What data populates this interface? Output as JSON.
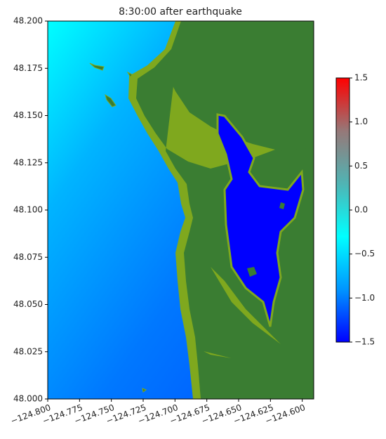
{
  "chart_data": {
    "type": "map",
    "title": "8:30:00 after earthquake",
    "xlim": [
      -124.8,
      -124.591
    ],
    "ylim": [
      48.0,
      48.2
    ],
    "xticks": [
      {
        "value": -124.8,
        "label": "−124.800"
      },
      {
        "value": -124.775,
        "label": "−124.775"
      },
      {
        "value": -124.75,
        "label": "−124.750"
      },
      {
        "value": -124.725,
        "label": "−124.725"
      },
      {
        "value": -124.7,
        "label": "−124.700"
      },
      {
        "value": -124.675,
        "label": "−124.675"
      },
      {
        "value": -124.65,
        "label": "−124.650"
      },
      {
        "value": -124.625,
        "label": "−124.625"
      },
      {
        "value": -124.6,
        "label": "−124.600"
      }
    ],
    "yticks": [
      {
        "value": 48.0,
        "label": "48.000"
      },
      {
        "value": 48.025,
        "label": "48.025"
      },
      {
        "value": 48.05,
        "label": "48.050"
      },
      {
        "value": 48.075,
        "label": "48.075"
      },
      {
        "value": 48.1,
        "label": "48.100"
      },
      {
        "value": 48.125,
        "label": "48.125"
      },
      {
        "value": 48.15,
        "label": "48.150"
      },
      {
        "value": 48.175,
        "label": "48.175"
      },
      {
        "value": 48.2,
        "label": "48.200"
      }
    ],
    "colorbar": {
      "clim": [
        -1.5,
        1.5
      ],
      "ticks": [
        {
          "value": -1.5,
          "label": "−1.5"
        },
        {
          "value": -1.0,
          "label": "−1.0"
        },
        {
          "value": -0.5,
          "label": "−0.5"
        },
        {
          "value": 0.0,
          "label": "0.0"
        },
        0.5,
        {
          "value": 1.0,
          "label": "1.0"
        },
        1.5
      ],
      "colors": [
        "#0000ff",
        "#0096ff",
        "#00ffff",
        "#50b4b4",
        "#967878",
        "#ff0000"
      ]
    }
  }
}
